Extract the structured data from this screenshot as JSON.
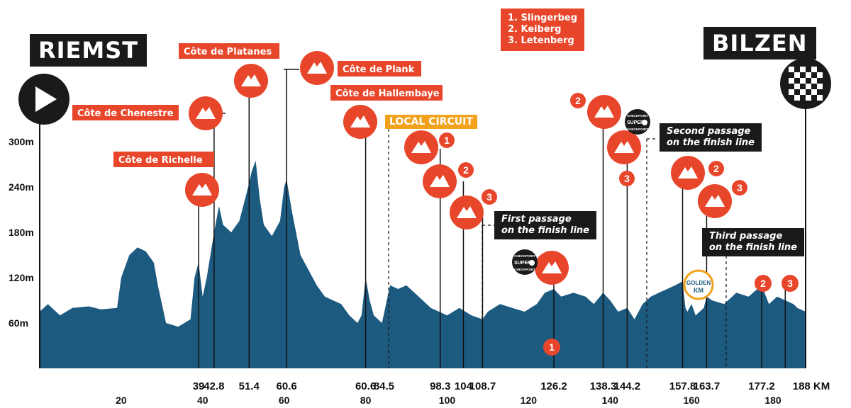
{
  "start_city": "RIEMST",
  "finish_city": "BILZEN",
  "local_circuit_label": "LOCAL CIRCUIT",
  "legend_lines": [
    "1. Slingerbeg",
    "2. Keiberg",
    "3. Letenberg"
  ],
  "notes": {
    "first": [
      "First passage",
      "on the finish line"
    ],
    "second": [
      "Second passage",
      "on the finish line"
    ],
    "third": [
      "Third passage",
      "on the finish line"
    ]
  },
  "checkpoint_text": {
    "top": "CHECKPOINT",
    "mid": "SUPER",
    "bottom": "CHECKPOINT"
  },
  "golden_km": [
    "GOLDEN",
    "KM"
  ],
  "colors": {
    "profile": "#1d5a80",
    "climb": "#e8462b",
    "dark": "#1a1a1a",
    "local": "#f2a21b",
    "golden": "#f2a21b"
  },
  "chart_data": {
    "type": "area",
    "xlabel": "KM",
    "x_ticks": [
      20,
      40,
      60,
      80,
      100,
      120,
      140,
      160,
      180
    ],
    "y_ticks": [
      "300m",
      "240m",
      "180m",
      "120m",
      "60m"
    ],
    "xlim": [
      0,
      188
    ],
    "ylim": [
      0,
      300
    ],
    "profile": [
      [
        0,
        75
      ],
      [
        2,
        85
      ],
      [
        5,
        70
      ],
      [
        8,
        80
      ],
      [
        12,
        82
      ],
      [
        15,
        78
      ],
      [
        19,
        80
      ],
      [
        20,
        120
      ],
      [
        22,
        150
      ],
      [
        24,
        160
      ],
      [
        26,
        155
      ],
      [
        28,
        140
      ],
      [
        29,
        110
      ],
      [
        31,
        60
      ],
      [
        34,
        55
      ],
      [
        37,
        65
      ],
      [
        38,
        120
      ],
      [
        39,
        140
      ],
      [
        40,
        95
      ],
      [
        41,
        120
      ],
      [
        42.8,
        180
      ],
      [
        44,
        215
      ],
      [
        45,
        190
      ],
      [
        47,
        180
      ],
      [
        49,
        195
      ],
      [
        51.4,
        245
      ],
      [
        52,
        260
      ],
      [
        53,
        275
      ],
      [
        54,
        225
      ],
      [
        55,
        190
      ],
      [
        57,
        175
      ],
      [
        59,
        195
      ],
      [
        60,
        240
      ],
      [
        60.6,
        250
      ],
      [
        62,
        205
      ],
      [
        64,
        150
      ],
      [
        66,
        130
      ],
      [
        68,
        110
      ],
      [
        70,
        95
      ],
      [
        72,
        90
      ],
      [
        74,
        85
      ],
      [
        76,
        70
      ],
      [
        78,
        60
      ],
      [
        79,
        70
      ],
      [
        80,
        120
      ],
      [
        81,
        90
      ],
      [
        82,
        70
      ],
      [
        84,
        60
      ],
      [
        86,
        110
      ],
      [
        88,
        105
      ],
      [
        90,
        110
      ],
      [
        92,
        100
      ],
      [
        94,
        90
      ],
      [
        96,
        80
      ],
      [
        98,
        75
      ],
      [
        100,
        70
      ],
      [
        103,
        80
      ],
      [
        106,
        70
      ],
      [
        108.7,
        65
      ],
      [
        110,
        75
      ],
      [
        113,
        85
      ],
      [
        116,
        80
      ],
      [
        119,
        75
      ],
      [
        122,
        85
      ],
      [
        124,
        100
      ],
      [
        126.2,
        105
      ],
      [
        128,
        95
      ],
      [
        131,
        100
      ],
      [
        134,
        95
      ],
      [
        136,
        85
      ],
      [
        138.3,
        100
      ],
      [
        140,
        90
      ],
      [
        142,
        75
      ],
      [
        144.2,
        80
      ],
      [
        146,
        65
      ],
      [
        148,
        85
      ],
      [
        150,
        95
      ],
      [
        152,
        100
      ],
      [
        154,
        105
      ],
      [
        156,
        110
      ],
      [
        157.8,
        115
      ],
      [
        158.5,
        80
      ],
      [
        159,
        75
      ],
      [
        160,
        85
      ],
      [
        161,
        70
      ],
      [
        163,
        80
      ],
      [
        163.7,
        95
      ],
      [
        165,
        90
      ],
      [
        168,
        85
      ],
      [
        171,
        100
      ],
      [
        174,
        95
      ],
      [
        177.2,
        110
      ],
      [
        179,
        85
      ],
      [
        181,
        95
      ],
      [
        183,
        90
      ],
      [
        185,
        85
      ],
      [
        186,
        80
      ],
      [
        188,
        75
      ]
    ],
    "km_labels": [
      "39",
      "42.8",
      "51.4",
      "60.6",
      "60.6",
      "84.5",
      "98.3",
      "104",
      "108.7",
      "126.2",
      "138.3",
      "144.2",
      "157.8",
      "163.7",
      "177.2",
      "188 KM"
    ],
    "climbs": [
      {
        "km": 39,
        "name": "Côte de Richelle",
        "num": ""
      },
      {
        "km": 42.8,
        "name": "Côte de Chenestre",
        "num": ""
      },
      {
        "km": 51.4,
        "name": "Côte de Platanes",
        "num": ""
      },
      {
        "km": 60.6,
        "name": "Côte de Plank",
        "num": ""
      },
      {
        "km": 80,
        "name": "Côte de Hallembaye",
        "num": ""
      },
      {
        "km": 98.3,
        "name": "",
        "num": "1"
      },
      {
        "km": 104,
        "name": "",
        "num": "2"
      },
      {
        "km": 108.7,
        "name": "",
        "num": "3"
      },
      {
        "km": 126.2,
        "name": "",
        "num": "1"
      },
      {
        "km": 138.3,
        "name": "",
        "num": "2"
      },
      {
        "km": 144.2,
        "name": "",
        "num": "3"
      },
      {
        "km": 157.8,
        "name": "",
        "num": "2"
      },
      {
        "km": 163.7,
        "name": "",
        "num": "3"
      },
      {
        "km": 177.2,
        "name": "",
        "num": "2"
      },
      {
        "km": 183,
        "name": "",
        "num": "3"
      }
    ]
  }
}
